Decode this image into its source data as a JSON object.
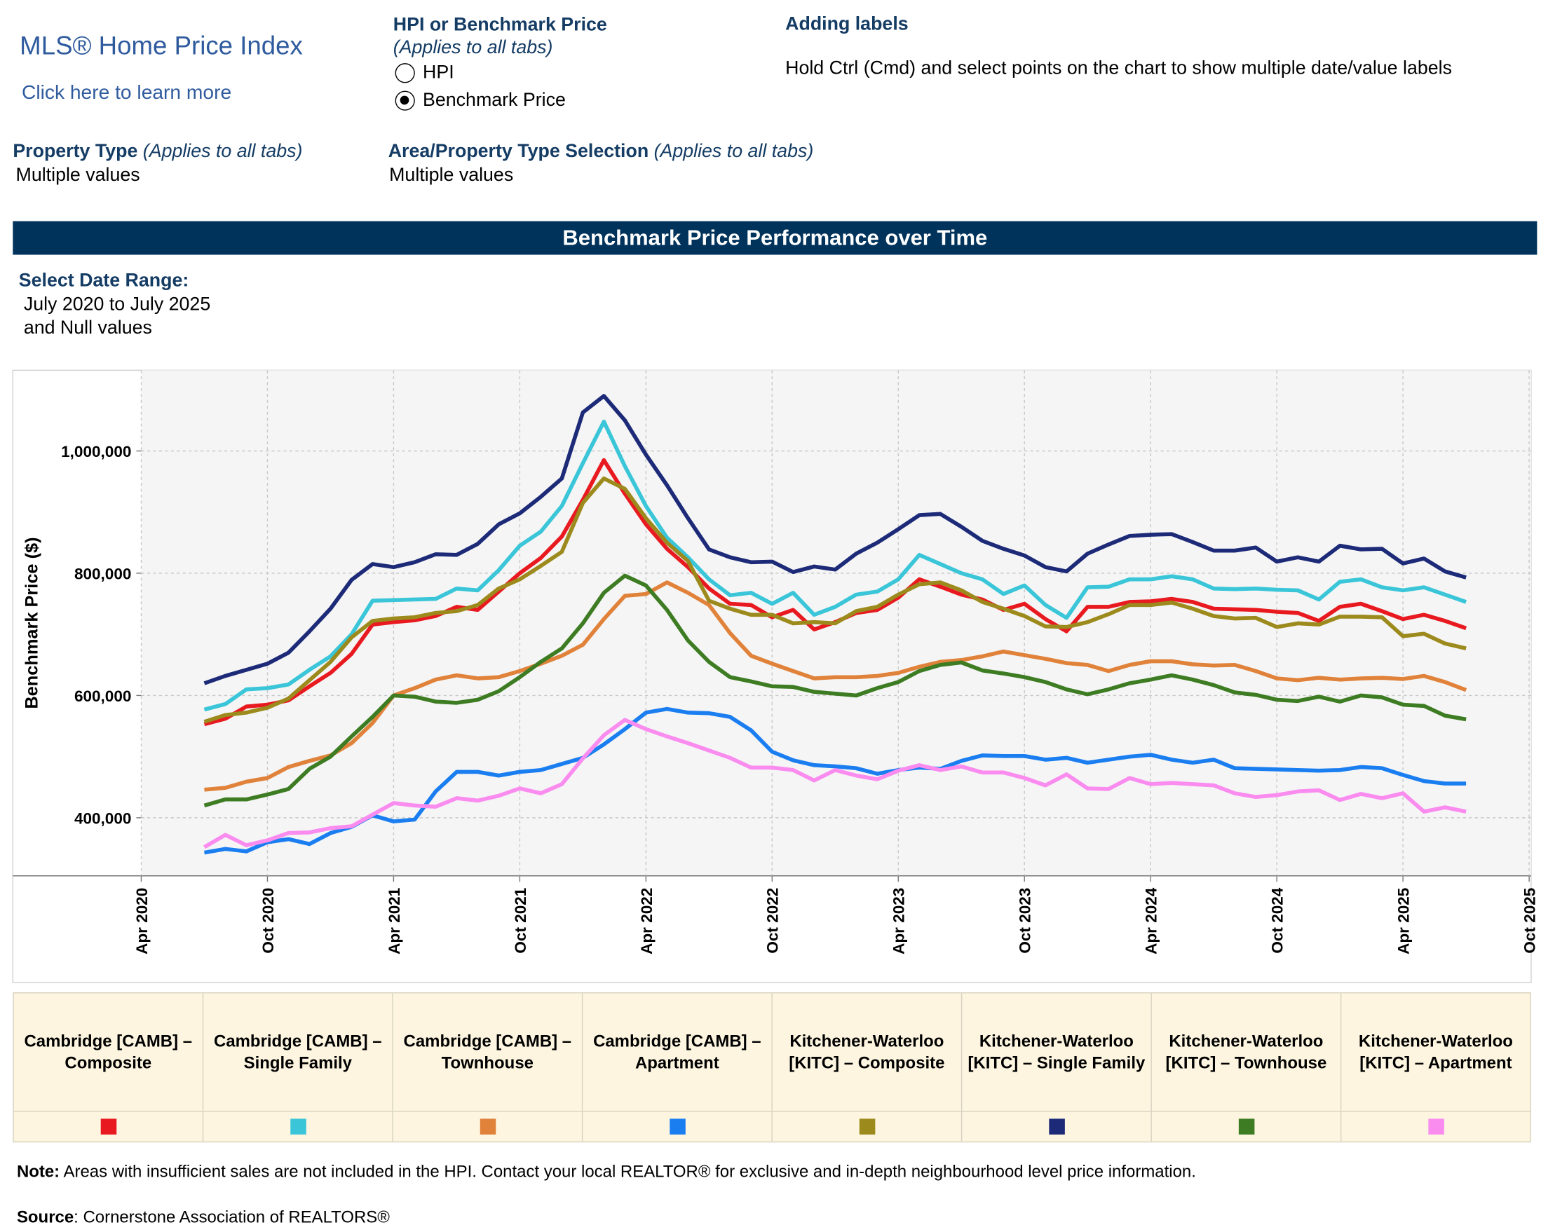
{
  "header": {
    "logo_title": "MLS® Home Price Index",
    "logo_link": "Click here to learn more"
  },
  "controls": {
    "measure": {
      "title": "HPI or Benchmark Price",
      "note": "(Applies to all tabs)",
      "options": [
        "HPI",
        "Benchmark Price"
      ],
      "selected": 1
    },
    "labels_help": {
      "title": "Adding labels",
      "text": "Hold Ctrl (Cmd) and select points on the chart to show multiple date/value labels"
    },
    "property_type": {
      "title": "Property Type",
      "note": "(Applies to all tabs)",
      "value": "Multiple values"
    },
    "area_selection": {
      "title": "Area/Property Type Selection",
      "note": "(Applies to all tabs)",
      "value": "Multiple values"
    },
    "date_range": {
      "title": "Select Date Range:",
      "value": "July 2020 to July 2025",
      "extra": "and Null values"
    }
  },
  "chart_data": {
    "type": "line",
    "title": "Benchmark Price Performance over Time",
    "y_label": "Benchmark Price ($)",
    "grid": true,
    "x": [
      "2020-07",
      "2020-08",
      "2020-09",
      "2020-10",
      "2020-11",
      "2020-12",
      "2021-01",
      "2021-02",
      "2021-03",
      "2021-04",
      "2021-05",
      "2021-06",
      "2021-07",
      "2021-08",
      "2021-09",
      "2021-10",
      "2021-11",
      "2021-12",
      "2022-01",
      "2022-02",
      "2022-03",
      "2022-04",
      "2022-05",
      "2022-06",
      "2022-07",
      "2022-08",
      "2022-09",
      "2022-10",
      "2022-11",
      "2022-12",
      "2023-01",
      "2023-02",
      "2023-03",
      "2023-04",
      "2023-05",
      "2023-06",
      "2023-07",
      "2023-08",
      "2023-09",
      "2023-10",
      "2023-11",
      "2023-12",
      "2024-01",
      "2024-02",
      "2024-03",
      "2024-04",
      "2024-05",
      "2024-06",
      "2024-07",
      "2024-08",
      "2024-09",
      "2024-10",
      "2024-11",
      "2024-12",
      "2025-01",
      "2025-02",
      "2025-03",
      "2025-04",
      "2025-05",
      "2025-06",
      "2025-07"
    ],
    "xlim": [
      "2020-04",
      "2025-10"
    ],
    "xticks": [
      {
        "value": "2020-04",
        "label": "Apr 2020"
      },
      {
        "value": "2020-10",
        "label": "Oct 2020"
      },
      {
        "value": "2021-04",
        "label": "Apr 2021"
      },
      {
        "value": "2021-10",
        "label": "Oct 2021"
      },
      {
        "value": "2022-04",
        "label": "Apr 2022"
      },
      {
        "value": "2022-10",
        "label": "Oct 2022"
      },
      {
        "value": "2023-04",
        "label": "Apr 2023"
      },
      {
        "value": "2023-10",
        "label": "Oct 2023"
      },
      {
        "value": "2024-04",
        "label": "Apr 2024"
      },
      {
        "value": "2024-10",
        "label": "Oct 2024"
      },
      {
        "value": "2025-04",
        "label": "Apr 2025"
      },
      {
        "value": "2025-10",
        "label": "Oct 2025"
      }
    ],
    "ylim": [
      305000,
      1132000
    ],
    "yticks": [
      {
        "value": 400000,
        "label": "400,000"
      },
      {
        "value": 600000,
        "label": "600,000"
      },
      {
        "value": 800000,
        "label": "800,000"
      },
      {
        "value": 1000000,
        "label": "1,000,000"
      }
    ],
    "series": [
      {
        "name": "Cambridge [CAMB] – Composite",
        "color": "#e8191f",
        "values": [
          553000,
          562000,
          582000,
          585000,
          592000,
          615000,
          637000,
          668000,
          716000,
          720000,
          723000,
          730000,
          745000,
          740000,
          770000,
          800000,
          825000,
          860000,
          920000,
          985000,
          930000,
          880000,
          840000,
          810000,
          775000,
          750000,
          748000,
          728000,
          740000,
          708000,
          720000,
          735000,
          740000,
          760000,
          790000,
          778000,
          765000,
          757000,
          740000,
          750000,
          725000,
          705000,
          745000,
          745000,
          753000,
          754000,
          758000,
          753000,
          742000,
          741000,
          740000,
          737000,
          735000,
          722000,
          745000,
          750000,
          738000,
          725000,
          732000,
          722000,
          710000
        ]
      },
      {
        "name": "Cambridge [CAMB] – Single Family",
        "color": "#3ac6d8",
        "values": [
          577000,
          586000,
          610000,
          612000,
          618000,
          642000,
          664000,
          700000,
          755000,
          756000,
          757000,
          758000,
          775000,
          772000,
          805000,
          845000,
          868000,
          910000,
          980000,
          1048000,
          975000,
          910000,
          858000,
          826000,
          790000,
          764000,
          768000,
          750000,
          768000,
          732000,
          745000,
          765000,
          770000,
          790000,
          830000,
          815000,
          800000,
          790000,
          766000,
          780000,
          748000,
          727000,
          777000,
          778000,
          790000,
          790000,
          795000,
          790000,
          775000,
          774000,
          775000,
          773000,
          772000,
          757000,
          786000,
          790000,
          777000,
          772000,
          777000,
          765000,
          753000
        ]
      },
      {
        "name": "Cambridge [CAMB] – Townhouse",
        "color": "#e0823a",
        "values": [
          446000,
          449000,
          459000,
          465000,
          483000,
          493000,
          502000,
          522000,
          555000,
          600000,
          612000,
          626000,
          633000,
          628000,
          630000,
          640000,
          652000,
          665000,
          683000,
          725000,
          763000,
          766000,
          785000,
          768000,
          748000,
          702000,
          665000,
          652000,
          640000,
          628000,
          630000,
          630000,
          632000,
          637000,
          647000,
          655000,
          658000,
          664000,
          672000,
          666000,
          660000,
          653000,
          650000,
          640000,
          650000,
          656000,
          656000,
          651000,
          649000,
          650000,
          640000,
          628000,
          625000,
          629000,
          626000,
          628000,
          629000,
          627000,
          632000,
          622000,
          609000
        ]
      },
      {
        "name": "Cambridge [CAMB] – Apartment",
        "color": "#1b7ef0",
        "values": [
          343000,
          349000,
          345000,
          360000,
          365000,
          357000,
          375000,
          385000,
          404000,
          394000,
          397000,
          443000,
          475000,
          475000,
          469000,
          475000,
          478000,
          488000,
          498000,
          520000,
          545000,
          572000,
          578000,
          572000,
          571000,
          565000,
          543000,
          508000,
          494000,
          486000,
          484000,
          481000,
          472000,
          478000,
          482000,
          480000,
          493000,
          502000,
          501000,
          501000,
          495000,
          498000,
          490000,
          495000,
          500000,
          503000,
          495000,
          490000,
          495000,
          481000,
          480000,
          479000,
          478000,
          477000,
          478000,
          483000,
          481000,
          470000,
          460000,
          456000,
          456000
        ]
      },
      {
        "name": "Kitchener-Waterloo [KITC] – Composite",
        "color": "#9c8a1c",
        "values": [
          557000,
          568000,
          572000,
          580000,
          595000,
          625000,
          655000,
          695000,
          722000,
          726000,
          728000,
          735000,
          738000,
          748000,
          775000,
          790000,
          812000,
          835000,
          915000,
          955000,
          938000,
          890000,
          850000,
          820000,
          755000,
          742000,
          732000,
          732000,
          718000,
          720000,
          718000,
          738000,
          745000,
          765000,
          782000,
          785000,
          772000,
          753000,
          742000,
          730000,
          713000,
          712000,
          720000,
          733000,
          748000,
          748000,
          752000,
          742000,
          730000,
          726000,
          727000,
          712000,
          718000,
          716000,
          729000,
          729000,
          728000,
          697000,
          701000,
          685000,
          677000
        ]
      },
      {
        "name": "Kitchener-Waterloo [KITC] – Single Family",
        "color": "#1c2a78",
        "values": [
          620000,
          632000,
          642000,
          652000,
          670000,
          705000,
          742000,
          789000,
          815000,
          810000,
          818000,
          831000,
          830000,
          848000,
          880000,
          898000,
          925000,
          955000,
          1063000,
          1090000,
          1050000,
          994000,
          944000,
          890000,
          839000,
          826000,
          818000,
          819000,
          802000,
          811000,
          806000,
          832000,
          850000,
          872000,
          895000,
          897000,
          876000,
          853000,
          840000,
          829000,
          810000,
          803000,
          832000,
          847000,
          861000,
          863000,
          864000,
          851000,
          837000,
          837000,
          842000,
          819000,
          826000,
          819000,
          845000,
          839000,
          840000,
          816000,
          824000,
          803000,
          793000
        ]
      },
      {
        "name": "Kitchener-Waterloo [KITC] – Townhouse",
        "color": "#3d7c22",
        "values": [
          420000,
          430000,
          430000,
          438000,
          447000,
          480000,
          500000,
          533000,
          565000,
          600000,
          598000,
          590000,
          588000,
          593000,
          607000,
          630000,
          655000,
          677000,
          718000,
          768000,
          796000,
          780000,
          740000,
          690000,
          655000,
          630000,
          623000,
          615000,
          614000,
          606000,
          603000,
          600000,
          612000,
          622000,
          640000,
          650000,
          654000,
          641000,
          636000,
          630000,
          622000,
          610000,
          602000,
          610000,
          620000,
          626000,
          633000,
          626000,
          617000,
          605000,
          601000,
          593000,
          591000,
          598000,
          590000,
          600000,
          597000,
          585000,
          583000,
          567000,
          561000
        ]
      },
      {
        "name": "Kitchener-Waterloo [KITC] – Apartment",
        "color": "#fa8cf0",
        "values": [
          352000,
          372000,
          355000,
          363000,
          375000,
          376000,
          383000,
          386000,
          405000,
          424000,
          420000,
          418000,
          432000,
          428000,
          436000,
          448000,
          440000,
          455000,
          497000,
          535000,
          560000,
          545000,
          533000,
          522000,
          510000,
          498000,
          482000,
          482000,
          478000,
          461000,
          478000,
          469000,
          463000,
          477000,
          486000,
          478000,
          484000,
          474000,
          474000,
          465000,
          453000,
          471000,
          448000,
          447000,
          465000,
          455000,
          457000,
          455000,
          453000,
          440000,
          434000,
          437000,
          443000,
          445000,
          429000,
          439000,
          432000,
          440000,
          410000,
          417000,
          410000
        ]
      }
    ]
  },
  "footer": {
    "note_label": "Note:",
    "note": "Areas with insufficient sales are not included in the HPI. Contact your local REALTOR® for exclusive and in-depth neighbourhood level price information.",
    "source_label": "Source",
    "source": ": Cornerstone Association of REALTORS®"
  }
}
